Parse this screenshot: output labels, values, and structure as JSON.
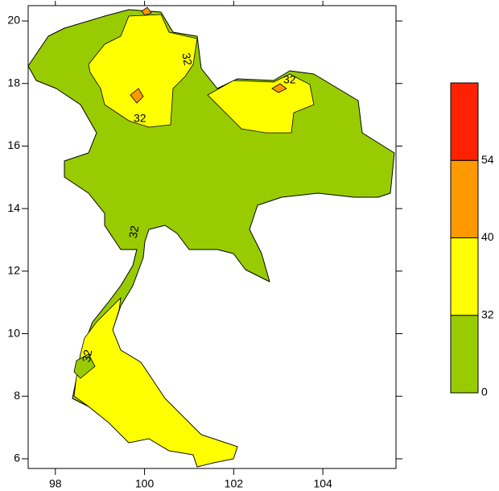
{
  "map": {
    "xlim": [
      97.39,
      105.64
    ],
    "ylim": [
      5.69,
      20.49
    ],
    "xticks": [
      98,
      100,
      102,
      104
    ],
    "yticks": [
      6,
      8,
      10,
      12,
      14,
      16,
      18,
      20
    ],
    "contour_labels": [
      "32",
      "32",
      "32",
      "32",
      "32"
    ],
    "legend": {
      "levels": [
        0,
        32,
        40,
        54
      ],
      "colors": [
        "#99cc00",
        "#ffff00",
        "#ff9900",
        "#ff2200"
      ]
    }
  }
}
